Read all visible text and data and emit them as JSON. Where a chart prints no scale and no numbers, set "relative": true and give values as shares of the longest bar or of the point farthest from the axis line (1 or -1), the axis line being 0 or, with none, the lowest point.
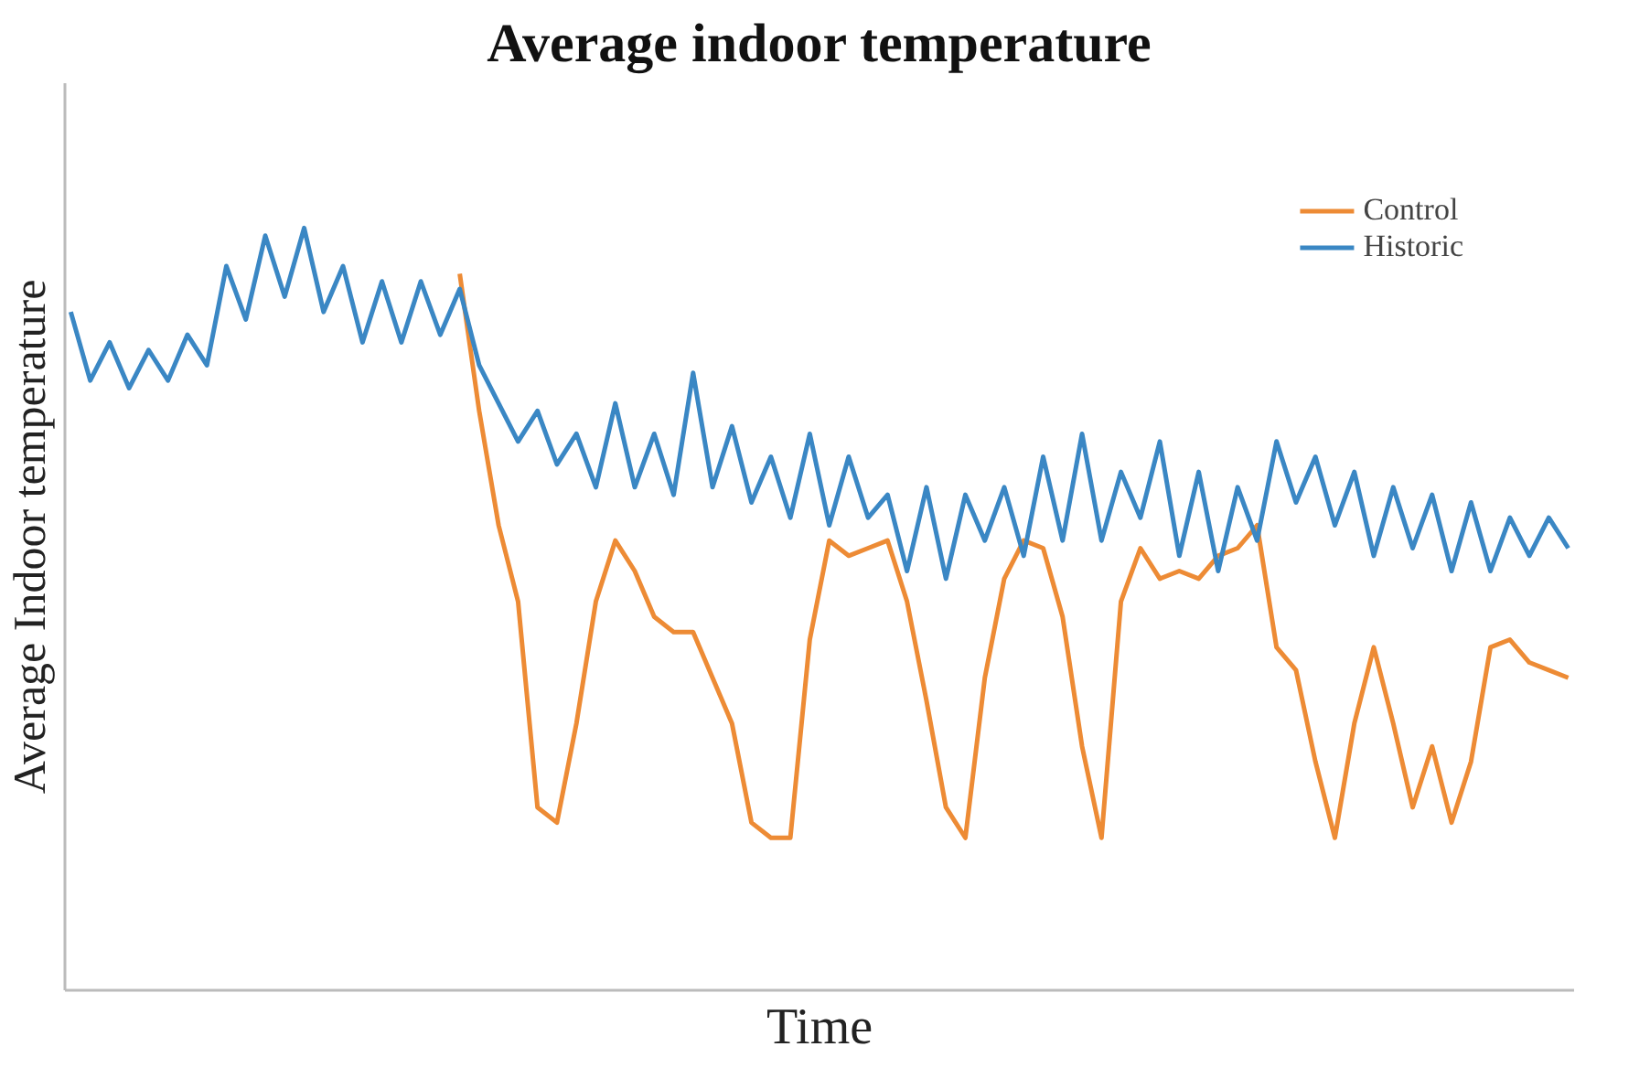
{
  "chart_data": {
    "type": "line",
    "title": "Average indoor temperature",
    "xlabel": "Time",
    "ylabel": "Average Indoor temperature",
    "relative": true,
    "legend": "top right",
    "categories": [
      null,
      null,
      null,
      null,
      null,
      null,
      null,
      null,
      null,
      null,
      null,
      null,
      null,
      null,
      null,
      null,
      null,
      null,
      null,
      null,
      null,
      null,
      null,
      null,
      null,
      null,
      null,
      null,
      null,
      null,
      null,
      null,
      null,
      null,
      null,
      null,
      null,
      null,
      null,
      null,
      null,
      null,
      null,
      null,
      null,
      null,
      null,
      null,
      null,
      null,
      null,
      null,
      null,
      null,
      null,
      null,
      null,
      null,
      null,
      null,
      null,
      null,
      null,
      null,
      null,
      null,
      null,
      null,
      null,
      null,
      null,
      null,
      null,
      null,
      null,
      null,
      null,
      null
    ],
    "series": [
      {
        "name": "Control",
        "color": "#ed8b35",
        "values": [
          null,
          null,
          null,
          null,
          null,
          null,
          null,
          null,
          null,
          null,
          null,
          null,
          null,
          null,
          null,
          null,
          null,
          null,
          null,
          null,
          0.94,
          0.76,
          0.61,
          0.51,
          0.24,
          0.22,
          0.35,
          0.51,
          0.59,
          0.55,
          0.49,
          0.47,
          0.47,
          0.41,
          0.35,
          0.22,
          0.2,
          0.2,
          0.46,
          0.59,
          0.57,
          0.58,
          0.59,
          0.51,
          0.38,
          0.24,
          0.2,
          0.41,
          0.54,
          0.59,
          0.58,
          0.49,
          0.32,
          0.2,
          0.51,
          0.58,
          0.54,
          0.55,
          0.54,
          0.57,
          0.58,
          0.61,
          0.45,
          0.42,
          0.3,
          0.2,
          0.35,
          0.45,
          0.35,
          0.24,
          0.32,
          0.22,
          0.3,
          0.45,
          0.46,
          0.43,
          0.42,
          0.41
        ]
      },
      {
        "name": "Historic",
        "color": "#3a87c4",
        "values": [
          0.89,
          0.8,
          0.85,
          0.79,
          0.84,
          0.8,
          0.86,
          0.82,
          0.95,
          0.88,
          0.99,
          0.91,
          1.0,
          0.89,
          0.95,
          0.85,
          0.93,
          0.85,
          0.93,
          0.86,
          0.92,
          0.82,
          0.77,
          0.72,
          0.76,
          0.69,
          0.73,
          0.66,
          0.77,
          0.66,
          0.73,
          0.65,
          0.81,
          0.66,
          0.74,
          0.64,
          0.7,
          0.62,
          0.73,
          0.61,
          0.7,
          0.62,
          0.65,
          0.55,
          0.66,
          0.54,
          0.65,
          0.59,
          0.66,
          0.57,
          0.7,
          0.59,
          0.73,
          0.59,
          0.68,
          0.62,
          0.72,
          0.57,
          0.68,
          0.55,
          0.66,
          0.59,
          0.72,
          0.64,
          0.7,
          0.61,
          0.68,
          0.57,
          0.66,
          0.58,
          0.65,
          0.55,
          0.64,
          0.55,
          0.62,
          0.57,
          0.62,
          0.58
        ]
      }
    ]
  }
}
